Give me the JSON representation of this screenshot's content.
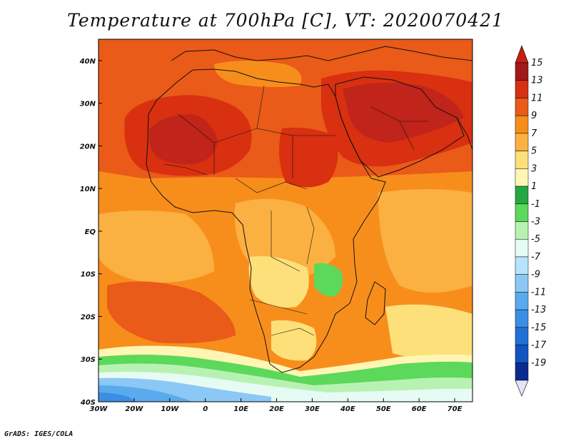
{
  "title": "Temperature at 700hPa [C], VT: 2020070421",
  "credit": "GrADS: IGES/COLA",
  "map": {
    "lat_ticks": [
      {
        "label": "40N",
        "lat": 40
      },
      {
        "label": "30N",
        "lat": 30
      },
      {
        "label": "20N",
        "lat": 20
      },
      {
        "label": "10N",
        "lat": 10
      },
      {
        "label": "EQ",
        "lat": 0
      },
      {
        "label": "10S",
        "lat": -10
      },
      {
        "label": "20S",
        "lat": -20
      },
      {
        "label": "30S",
        "lat": -30
      },
      {
        "label": "40S",
        "lat": -40
      }
    ],
    "lon_ticks": [
      {
        "label": "30W",
        "lon": -30
      },
      {
        "label": "20W",
        "lon": -20
      },
      {
        "label": "10W",
        "lon": -10
      },
      {
        "label": "0",
        "lon": 0
      },
      {
        "label": "10E",
        "lon": 10
      },
      {
        "label": "20E",
        "lon": 20
      },
      {
        "label": "30E",
        "lon": 30
      },
      {
        "label": "40E",
        "lon": 40
      },
      {
        "label": "50E",
        "lon": 50
      },
      {
        "label": "60E",
        "lon": 60
      },
      {
        "label": "70E",
        "lon": 70
      }
    ],
    "extent": {
      "lon_min": -30,
      "lon_max": 75,
      "lat_min": -40,
      "lat_max": 45
    }
  },
  "colorbar": {
    "levels": [
      {
        "label": "15",
        "color": "#a01a1a"
      },
      {
        "label": "13",
        "color": "#d83010"
      },
      {
        "label": "11",
        "color": "#ea5a18"
      },
      {
        "label": "9",
        "color": "#f78e1c"
      },
      {
        "label": "7",
        "color": "#fbb042"
      },
      {
        "label": "5",
        "color": "#fde07a"
      },
      {
        "label": "3",
        "color": "#fff6b4"
      },
      {
        "label": "1",
        "color": "#25a843"
      },
      {
        "label": "-1",
        "color": "#5cd85a"
      },
      {
        "label": "-3",
        "color": "#b8f2b2"
      },
      {
        "label": "-5",
        "color": "#e6fbf3"
      },
      {
        "label": "-7",
        "color": "#b6e4fa"
      },
      {
        "label": "-9",
        "color": "#8cc8f5"
      },
      {
        "label": "-11",
        "color": "#5aaaee"
      },
      {
        "label": "-13",
        "color": "#3b8ee4"
      },
      {
        "label": "-15",
        "color": "#2070d6"
      },
      {
        "label": "-17",
        "color": "#1254c0"
      },
      {
        "label": "-19",
        "color": "#0a2a90"
      }
    ],
    "top_arrow_color": "#c81e10",
    "bottom_arrow_color": "#e4e4fa"
  }
}
